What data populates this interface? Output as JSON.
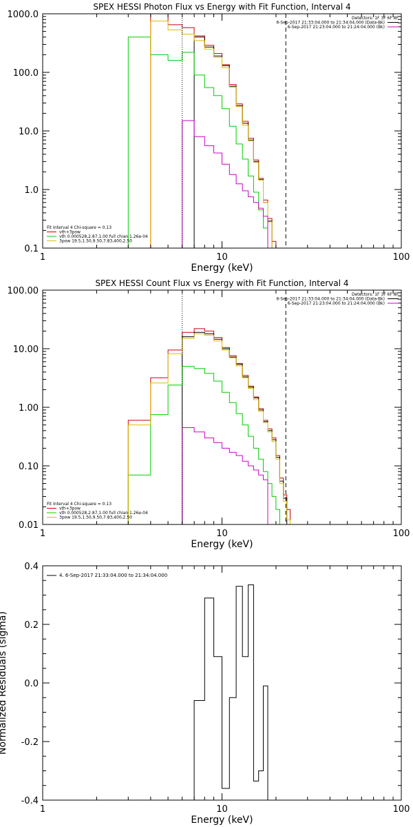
{
  "panels": [
    {
      "title": "SPEX HESSI Photon Flux vs Energy with Fit Function, Interval 4",
      "xlabel": "Energy (keV)",
      "ylabel": "",
      "xscale": "log",
      "yscale": "log",
      "xlim": [
        1,
        100
      ],
      "ylim": [
        0.1,
        1000
      ],
      "xticks": [
        {
          "v": 1,
          "l": "1"
        },
        {
          "v": 10,
          "l": "10"
        },
        {
          "v": 100,
          "l": "100"
        }
      ],
      "yticks": [
        {
          "v": 0.1,
          "l": "0.1"
        },
        {
          "v": 1,
          "l": "1.0"
        },
        {
          "v": 10,
          "l": "10.0"
        },
        {
          "v": 100,
          "l": "100.0"
        },
        {
          "v": 1000,
          "l": "1000.0"
        }
      ],
      "right_legend": [
        {
          "text": "Detectors: 1F 3F 6F 8F",
          "color": "#000000",
          "line": false
        },
        {
          "text": "6-Sep-2017 21:33:04.000 to 21:34:04.000 (Data-Bk)",
          "color": "#000000",
          "line": true
        },
        {
          "text": "6-Sep-2017 21:23:04.000 to 21:24:04.000 (Bk)",
          "color": "#cc00cc",
          "line": true
        }
      ],
      "left_legend": [
        {
          "text": "Fit Interval 4   Chi-square = 0.13",
          "color": "#000000",
          "line": false
        },
        {
          "text": "vth+3pow",
          "color": "#cc0000",
          "line": true
        },
        {
          "text": "vth 0.000528,2.87,1.00  full chian 1.26e-04",
          "color": "#00cc00",
          "line": true
        },
        {
          "text": "3pow 19.5,1.50,9.50,7.83,400,2.50",
          "color": "#ddbb00",
          "line": true
        }
      ],
      "vlines": [
        {
          "x": 6,
          "style": "dotted",
          "color": "#000000"
        },
        {
          "x": 22.7,
          "style": "dashed",
          "color": "#000000"
        }
      ],
      "edges": [
        3,
        4,
        5,
        6,
        7,
        8,
        9,
        10,
        11,
        12,
        13,
        14,
        15,
        16,
        17,
        18,
        19,
        20,
        21,
        22,
        23,
        24,
        25
      ],
      "series": [
        {
          "name": "vth+3pow",
          "color": "#cc0000",
          "values": [
            null,
            1000,
            650,
            580,
            420,
            290,
            210,
            135,
            62,
            29,
            14.6,
            7.5,
            3.2,
            1.55,
            0.66,
            0.32,
            0.13,
            null,
            null,
            null,
            null,
            null
          ]
        },
        {
          "name": "Data-Bk",
          "color": "#000000",
          "values": [
            null,
            null,
            null,
            0.1,
            400,
            270,
            190,
            130,
            58,
            27,
            13.5,
            7,
            3,
            1.48,
            0.6,
            0.29,
            null,
            null,
            null,
            null,
            null,
            null
          ]
        },
        {
          "name": "vth",
          "color": "#00cc00",
          "values": [
            400,
            200,
            160,
            220,
            90,
            55,
            40,
            24,
            12,
            6,
            3.3,
            1.7,
            0.9,
            0.45,
            0.22,
            0.1,
            null,
            null,
            null,
            null,
            null,
            null
          ]
        },
        {
          "name": "3pow",
          "color": "#ddbb00",
          "values": [
            0.1,
            750,
            530,
            450,
            350,
            250,
            180,
            120,
            56,
            26,
            12.5,
            6.8,
            2.9,
            1.45,
            0.6,
            0.28,
            0.1,
            null,
            null,
            null,
            null,
            null
          ]
        },
        {
          "name": "Bk",
          "color": "#cc00cc",
          "values": [
            null,
            null,
            null,
            15,
            8,
            5.6,
            4.2,
            2.7,
            1.8,
            1.25,
            0.95,
            0.75,
            0.6,
            0.48,
            0.35,
            null,
            null,
            null,
            null,
            null,
            null,
            null
          ]
        }
      ]
    },
    {
      "title": "SPEX HESSI Count Flux vs Energy with Fit Function, Interval 4",
      "xlabel": "Energy (keV)",
      "ylabel": "",
      "xscale": "log",
      "yscale": "log",
      "xlim": [
        1,
        100
      ],
      "ylim": [
        0.01,
        100
      ],
      "xticks": [
        {
          "v": 1,
          "l": "1"
        },
        {
          "v": 10,
          "l": "10"
        },
        {
          "v": 100,
          "l": "100"
        }
      ],
      "yticks": [
        {
          "v": 0.01,
          "l": "0.01"
        },
        {
          "v": 0.1,
          "l": "0.10"
        },
        {
          "v": 1,
          "l": "1.00"
        },
        {
          "v": 10,
          "l": "10.00"
        },
        {
          "v": 100,
          "l": "100.00"
        }
      ],
      "right_legend": [
        {
          "text": "Detectors: 1F 3F 6F 8F",
          "color": "#000000",
          "line": false
        },
        {
          "text": "6-Sep-2017 21:33:04.000 to 21:34:04.000 (Data-Bk)",
          "color": "#000000",
          "line": true
        },
        {
          "text": "6-Sep-2017 21:23:04.000 to 21:24:04.000 (Bk)",
          "color": "#cc00cc",
          "line": true
        }
      ],
      "left_legend": [
        {
          "text": "Fit Interval 4   Chi-square = 0.13",
          "color": "#000000",
          "line": false
        },
        {
          "text": "vth+3pow",
          "color": "#cc0000",
          "line": true
        },
        {
          "text": "vth 0.000528,2.87,1.00  full chian 1.26e-04",
          "color": "#00cc00",
          "line": true
        },
        {
          "text": "3pow 19.5,1.50,9.50,7.83,400,2.50",
          "color": "#ddbb00",
          "line": true
        }
      ],
      "vlines": [
        {
          "x": 6,
          "style": "dotted",
          "color": "#000000"
        },
        {
          "x": 22.7,
          "style": "dashed",
          "color": "#000000"
        }
      ],
      "edges": [
        3,
        4,
        5,
        6,
        7,
        8,
        9,
        10,
        11,
        12,
        13,
        14,
        15,
        16,
        17,
        18,
        19,
        20,
        21,
        22,
        23,
        24,
        25
      ],
      "series": [
        {
          "name": "vth+3pow",
          "color": "#cc0000",
          "values": [
            0.6,
            3.2,
            9.5,
            19,
            22,
            20,
            15.5,
            10.5,
            7.6,
            5.6,
            3.5,
            2.3,
            1.5,
            0.95,
            0.6,
            0.43,
            0.3,
            0.15,
            0.062,
            0.032,
            0.018,
            null
          ]
        },
        {
          "name": "Data-Bk",
          "color": "#000000",
          "values": [
            null,
            null,
            null,
            16,
            19,
            18,
            14.5,
            10,
            7.2,
            5.4,
            3.3,
            2.2,
            1.45,
            0.9,
            0.57,
            0.4,
            0.28,
            0.14,
            0.055,
            0.028,
            null,
            null
          ]
        },
        {
          "name": "vth",
          "color": "#00cc00",
          "values": [
            0.07,
            0.75,
            2.4,
            5,
            4.6,
            3.8,
            2.8,
            1.8,
            1.2,
            0.78,
            0.5,
            0.32,
            0.2,
            0.13,
            0.08,
            0.05,
            0.03,
            0.018,
            null,
            null,
            null,
            null
          ]
        },
        {
          "name": "3pow",
          "color": "#ddbb00",
          "values": [
            0.5,
            2.6,
            8.2,
            15,
            18,
            17,
            13.5,
            9.5,
            7,
            5.1,
            3.2,
            2.1,
            1.35,
            0.85,
            0.55,
            0.38,
            0.26,
            0.13,
            0.05,
            0.025,
            0.012,
            null
          ]
        },
        {
          "name": "Bk",
          "color": "#cc00cc",
          "values": [
            null,
            null,
            null,
            0.45,
            0.38,
            0.3,
            0.25,
            0.2,
            0.17,
            0.15,
            0.12,
            0.1,
            0.085,
            0.07,
            0.058,
            null,
            null,
            null,
            null,
            null,
            null,
            null
          ]
        }
      ]
    },
    {
      "title": "",
      "xlabel": "Energy (keV)",
      "ylabel": "Normalized Residuals (sigma)",
      "xscale": "log",
      "yscale": "linear",
      "xlim": [
        1,
        100
      ],
      "ylim": [
        -0.4,
        0.4
      ],
      "xticks": [
        {
          "v": 1,
          "l": "1"
        },
        {
          "v": 10,
          "l": "10"
        },
        {
          "v": 100,
          "l": "100"
        }
      ],
      "yticks": [
        {
          "v": -0.4,
          "l": "-0.4"
        },
        {
          "v": -0.2,
          "l": "-0.2"
        },
        {
          "v": 0,
          "l": "0.0"
        },
        {
          "v": 0.2,
          "l": "0.2"
        },
        {
          "v": 0.4,
          "l": "0.4"
        }
      ],
      "right_legend": [],
      "left_legend": [
        {
          "text": "4.  6-Sep-2017 21:33:04.000 to 21:34:04.000",
          "color": "#000000",
          "line": true
        }
      ],
      "vlines": [],
      "edges": [
        6,
        7,
        8,
        9,
        10,
        11,
        12,
        13,
        14,
        15,
        16,
        17,
        18,
        19,
        20,
        21,
        22
      ],
      "series": [
        {
          "name": "residuals",
          "color": "#000000",
          "values": [
            -0.4,
            -0.06,
            0.29,
            0.09,
            -0.36,
            -0.05,
            0.33,
            0.09,
            0.335,
            -0.335,
            -0.3,
            -0.01,
            null,
            null,
            null,
            null
          ]
        }
      ]
    }
  ],
  "chart_data": [
    {
      "type": "line",
      "title": "SPEX HESSI Photon Flux vs Energy with Fit Function, Interval 4",
      "xlabel": "Energy (keV)",
      "ylabel": "",
      "xlim": [
        1,
        100
      ],
      "ylim": [
        0.1,
        1000
      ],
      "x": [
        3.5,
        4.5,
        5.5,
        6.5,
        7.5,
        8.5,
        9.5,
        10.5,
        11.5,
        12.5,
        13.5,
        14.5,
        15.5,
        16.5,
        17.5,
        18.5,
        19.5
      ],
      "series": [
        {
          "name": "vth+3pow",
          "values": [
            null,
            1000,
            650,
            580,
            420,
            290,
            210,
            135,
            62,
            29,
            14.6,
            7.5,
            3.2,
            1.55,
            0.66,
            0.32,
            0.13
          ]
        },
        {
          "name": "vth",
          "values": [
            400,
            200,
            160,
            220,
            90,
            55,
            40,
            24,
            12,
            6,
            3.3,
            1.7,
            0.9,
            0.45,
            0.22,
            0.1,
            null
          ]
        },
        {
          "name": "3pow",
          "values": [
            0.1,
            750,
            530,
            450,
            350,
            250,
            180,
            120,
            56,
            26,
            12.5,
            6.8,
            2.9,
            1.45,
            0.6,
            0.28,
            0.1
          ]
        }
      ]
    },
    {
      "type": "line",
      "title": "SPEX HESSI Count Flux vs Energy with Fit Function, Interval 4",
      "xlabel": "Energy (keV)",
      "ylabel": "",
      "xlim": [
        1,
        100
      ],
      "ylim": [
        0.01,
        100
      ],
      "x": [
        3.5,
        4.5,
        5.5,
        6.5,
        7.5,
        8.5,
        9.5,
        10.5,
        11.5,
        12.5,
        13.5
      ],
      "series": [
        {
          "name": "vth+3pow",
          "values": [
            0.6,
            3.2,
            9.5,
            19,
            22,
            20,
            15.5,
            10.5,
            7.6,
            5.6,
            3.5
          ]
        },
        {
          "name": "vth",
          "values": [
            0.07,
            0.75,
            2.4,
            5,
            4.6,
            3.8,
            2.8,
            1.8,
            1.2,
            0.78,
            0.5
          ]
        }
      ]
    },
    {
      "type": "line",
      "title": "",
      "xlabel": "Energy (keV)",
      "ylabel": "Normalized Residuals (sigma)",
      "xlim": [
        1,
        100
      ],
      "ylim": [
        -0.4,
        0.4
      ],
      "x": [
        6.5,
        7.5,
        8.5,
        9.5,
        10.5,
        11.5,
        12.5,
        13.5,
        14.5,
        15.5,
        16.5,
        17.5
      ],
      "series": [
        {
          "name": "",
          "values": [
            -0.4,
            -0.06,
            0.29,
            0.09,
            -0.36,
            -0.05,
            0.33,
            0.09,
            0.335,
            -0.335,
            -0.3,
            -0.01
          ]
        }
      ]
    }
  ]
}
